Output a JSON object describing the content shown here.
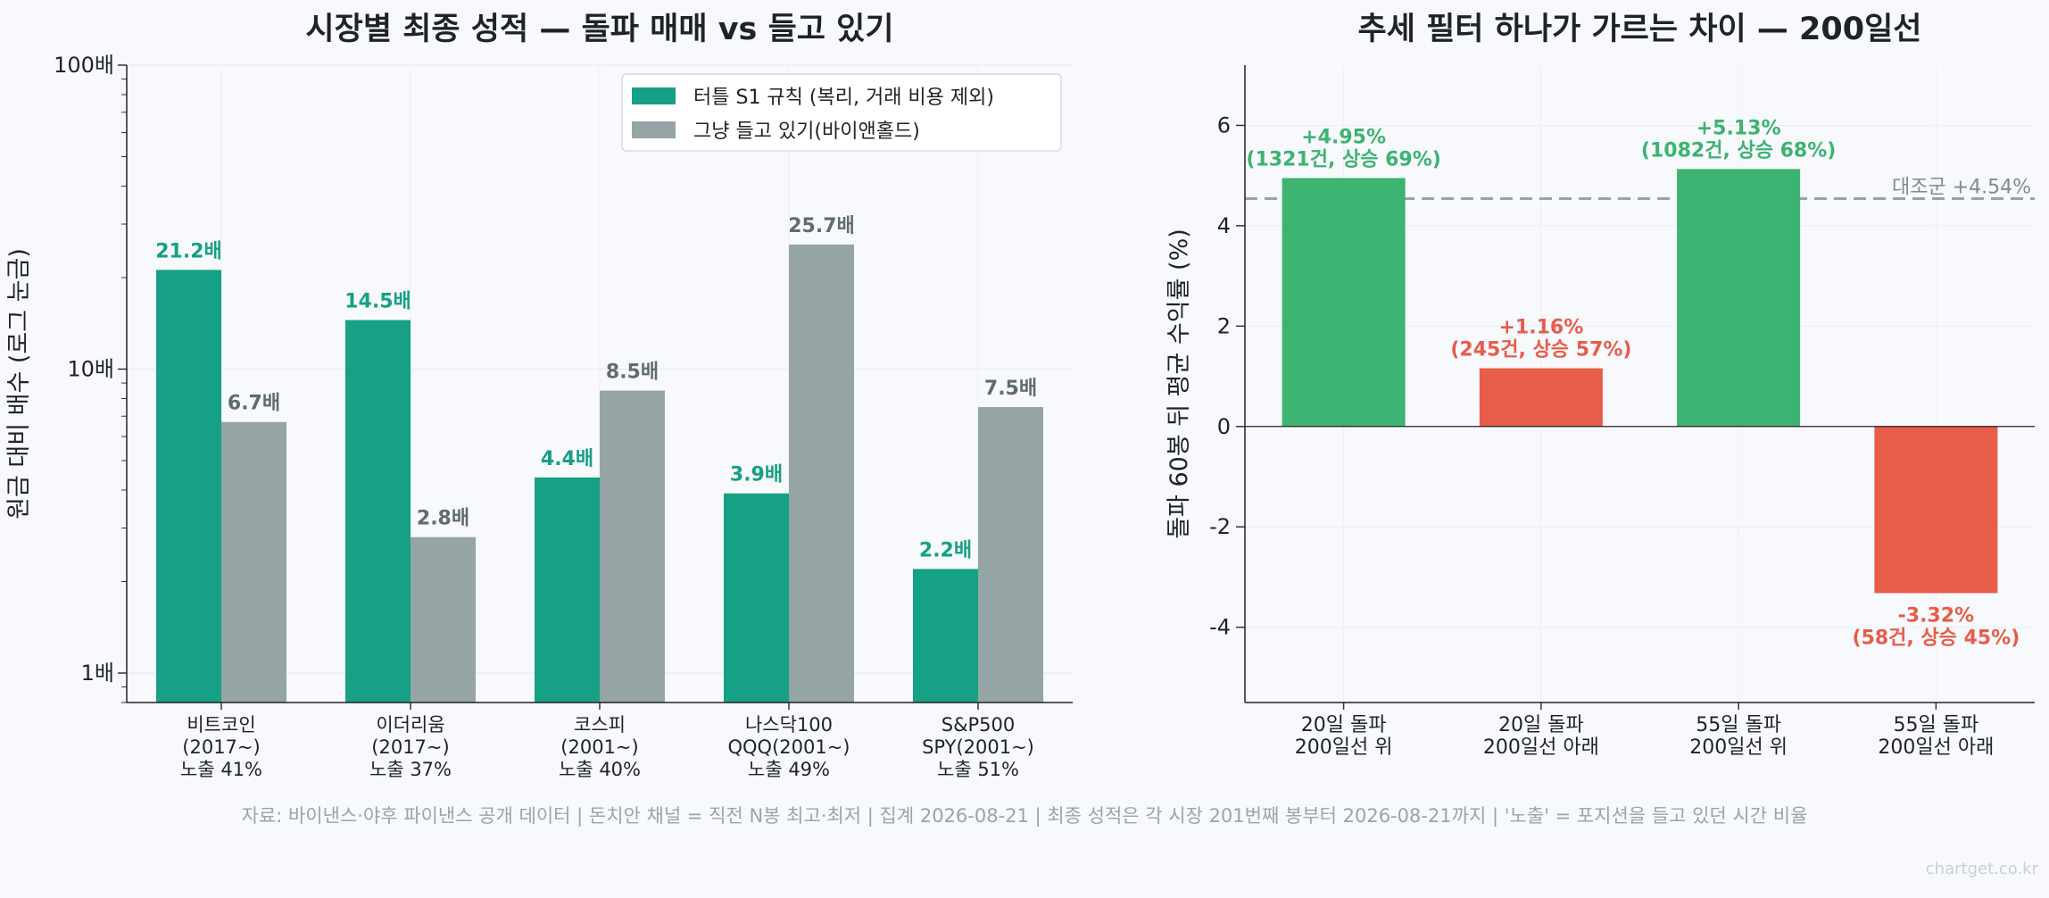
{
  "chart_data": [
    {
      "type": "bar",
      "title": "시장별 최종 성적 — 돌파 매매 vs 들고 있기",
      "ylabel": "원금 대비 배수 (로그 눈금)",
      "xlabel": "",
      "yscale": "log",
      "ylim": [
        0.8,
        100
      ],
      "yticks": [
        {
          "value": 1,
          "label": "1배"
        },
        {
          "value": 10,
          "label": "10배"
        },
        {
          "value": 100,
          "label": "100배"
        }
      ],
      "categories": [
        {
          "name": "비트코인",
          "period": "(2017~)",
          "exposure": "노출 41%"
        },
        {
          "name": "이더리움",
          "period": "(2017~)",
          "exposure": "노출 37%"
        },
        {
          "name": "코스피",
          "period": "(2001~)",
          "exposure": "노출 40%"
        },
        {
          "name": "나스닥100",
          "period": "QQQ(2001~)",
          "exposure": "노출 49%"
        },
        {
          "name": "S&P500",
          "period": "SPY(2001~)",
          "exposure": "노출 51%"
        }
      ],
      "series": [
        {
          "name": "터틀 S1 규칙 (복리, 거래 비용 제외)",
          "color": "#16a085",
          "values": [
            21.2,
            14.5,
            4.4,
            3.9,
            2.2
          ],
          "labels": [
            "21.2배",
            "14.5배",
            "4.4배",
            "3.9배",
            "2.2배"
          ]
        },
        {
          "name": "그냥 들고 있기(바이앤홀드)",
          "color": "#95a5a6",
          "label_color": "#5f6b73",
          "values": [
            6.7,
            2.8,
            8.5,
            25.7,
            7.5
          ],
          "labels": [
            "6.7배",
            "2.8배",
            "8.5배",
            "25.7배",
            "7.5배"
          ]
        }
      ],
      "legend": "top-right",
      "grid": true
    },
    {
      "type": "bar",
      "title": "추세 필터 하나가 가르는 차이 — 200일선",
      "ylabel": "돌파 60봉 뒤 평균 수익률 (%)",
      "xlabel": "",
      "ylim": [
        -5.5,
        7.2
      ],
      "yticks": [
        -4,
        -2,
        0,
        2,
        4,
        6
      ],
      "categories": [
        [
          "20일 돌파",
          "200일선 위"
        ],
        [
          "20일 돌파",
          "200일선 아래"
        ],
        [
          "55일 돌파",
          "200일선 위"
        ],
        [
          "55일 돌파",
          "200일선 아래"
        ]
      ],
      "values": [
        4.95,
        1.16,
        5.13,
        -3.32
      ],
      "colors": [
        "#3cb371",
        "#e85c4a",
        "#3cb371",
        "#e85c4a"
      ],
      "value_labels": [
        "+4.95%",
        "+1.16%",
        "+5.13%",
        "-3.32%"
      ],
      "detail_labels": [
        "(1321건, 상승 69%)",
        "(245건, 상승 57%)",
        "(1082건, 상승 68%)",
        "(58건, 상승 45%)"
      ],
      "reference_line": {
        "value": 4.54,
        "label": "대조군 +4.54%"
      },
      "grid": true
    }
  ],
  "footer": "자료: 바이낸스·야후 파이낸스 공개 데이터 | 돈치안 채널 = 직전 N봉 최고·최저 | 집계 2026-08-21 | 최종 성적은 각 시장 201번째 봉부터 2026-08-21까지 | '노출' = 포지션을 들고 있던 시간 비율",
  "watermark": "chartget.co.kr"
}
